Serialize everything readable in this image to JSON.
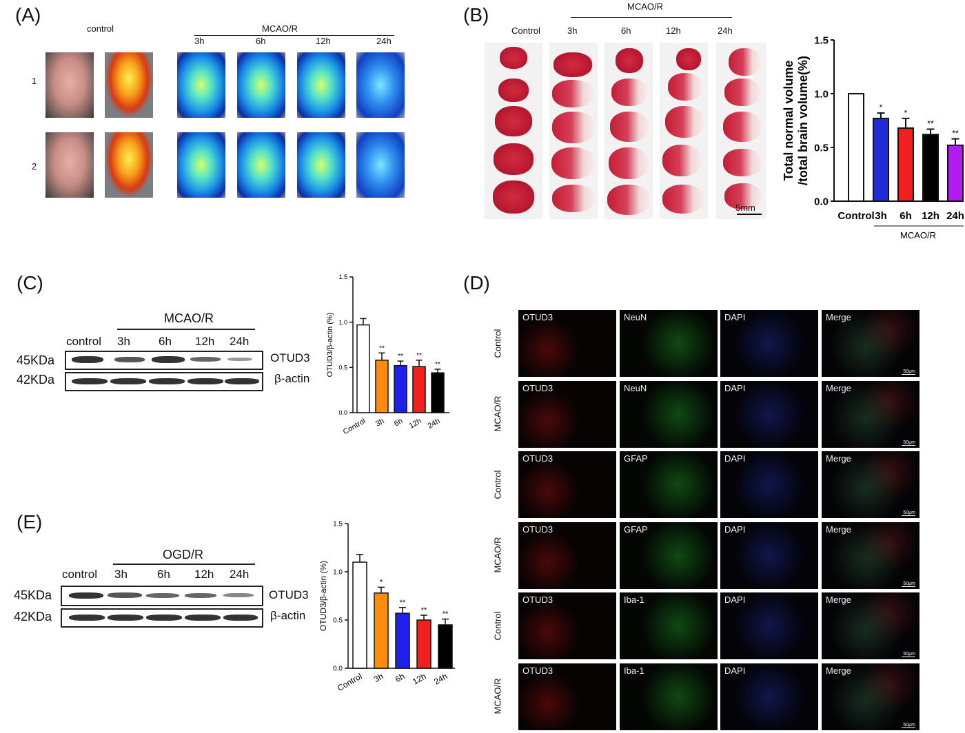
{
  "panelA": {
    "label": "(A)",
    "control_label": "control",
    "group_label": "MCAO/R",
    "timepoints": [
      "3h",
      "6h",
      "12h",
      "24h"
    ],
    "rows": [
      "1",
      "2"
    ]
  },
  "panelB": {
    "label": "(B)",
    "control_label": "Control",
    "group_label": "MCAO/R",
    "timepoints": [
      "3h",
      "6h",
      "12h",
      "24h"
    ],
    "scale_label": "5mm"
  },
  "panelC": {
    "label": "(C)",
    "group_label": "MCAO/R",
    "lanes": [
      "control",
      "3h",
      "6h",
      "12h",
      "24h"
    ],
    "markers": [
      "45KDa",
      "42KDa"
    ],
    "proteins": [
      "OTUD3",
      "β-actin"
    ]
  },
  "panelD": {
    "label": "(D)",
    "rows": [
      {
        "group": "Control",
        "channels": [
          "OTUD3",
          "NeuN",
          "DAPI",
          "Merge"
        ],
        "marker_color": "#22cc33"
      },
      {
        "group": "MCAO/R",
        "channels": [
          "OTUD3",
          "NeuN",
          "DAPI",
          "Merge"
        ],
        "marker_color": "#22cc33"
      },
      {
        "group": "Control",
        "channels": [
          "OTUD3",
          "GFAP",
          "DAPI",
          "Merge"
        ],
        "marker_color": "#22cc33"
      },
      {
        "group": "MCAO/R",
        "channels": [
          "OTUD3",
          "GFAP",
          "DAPI",
          "Merge"
        ],
        "marker_color": "#22cc33"
      },
      {
        "group": "Control",
        "channels": [
          "OTUD3",
          "Iba-1",
          "DAPI",
          "Merge"
        ],
        "marker_color": "#22cc33"
      },
      {
        "group": "MCAO/R",
        "channels": [
          "OTUD3",
          "Iba-1",
          "DAPI",
          "Merge"
        ],
        "marker_color": "#22cc33"
      }
    ],
    "scale_label": "50μm"
  },
  "panelE": {
    "label": "(E)",
    "group_label": "OGD/R",
    "lanes": [
      "control",
      "3h",
      "6h",
      "12h",
      "24h"
    ],
    "markers": [
      "45KDa",
      "42KDa"
    ],
    "proteins": [
      "OTUD3",
      "β-actin"
    ]
  },
  "chart_data": [
    {
      "id": "B",
      "type": "bar",
      "categories": [
        "Control",
        "3h",
        "6h",
        "12h",
        "24h"
      ],
      "values": [
        1.0,
        0.77,
        0.68,
        0.62,
        0.52
      ],
      "errors": [
        0,
        0.05,
        0.09,
        0.05,
        0.06
      ],
      "significance": [
        "",
        "*",
        "*",
        "**",
        "**"
      ],
      "colors": [
        "#ffffff",
        "#1f2bd6",
        "#f21f1f",
        "#000000",
        "#b21cf2"
      ],
      "ylabel": "Total normal volume /total brain volume(%)",
      "ylim": [
        0,
        1.5
      ],
      "yticks": [
        "0.0",
        "0.5",
        "1.0",
        "1.5"
      ],
      "group_label": "MCAO/R"
    },
    {
      "id": "C",
      "type": "bar",
      "categories": [
        "Control",
        "3h",
        "6h",
        "12h",
        "24h"
      ],
      "values": [
        0.97,
        0.58,
        0.52,
        0.51,
        0.44
      ],
      "errors": [
        0.07,
        0.08,
        0.05,
        0.07,
        0.04
      ],
      "significance": [
        "",
        "**",
        "**",
        "**",
        "**"
      ],
      "colors": [
        "#ffffff",
        "#ff8c0f",
        "#1f1ff0",
        "#f21f1f",
        "#000000"
      ],
      "ylabel": "OTUD3/β-actin (%)",
      "ylim": [
        0,
        1.5
      ],
      "yticks": [
        "0.0",
        "0.5",
        "1.0",
        "1.5"
      ]
    },
    {
      "id": "E",
      "type": "bar",
      "categories": [
        "Control",
        "3h",
        "6h",
        "12h",
        "24h"
      ],
      "values": [
        1.1,
        0.78,
        0.57,
        0.5,
        0.45
      ],
      "errors": [
        0.08,
        0.06,
        0.06,
        0.05,
        0.06
      ],
      "significance": [
        "",
        "*",
        "**",
        "**",
        "**"
      ],
      "colors": [
        "#ffffff",
        "#ff8c0f",
        "#1f1ff0",
        "#f21f1f",
        "#000000"
      ],
      "ylabel": "OTUD3/β-actin (%)",
      "ylim": [
        0,
        1.5
      ],
      "yticks": [
        "0.0",
        "0.5",
        "1.0",
        "1.5"
      ]
    }
  ]
}
